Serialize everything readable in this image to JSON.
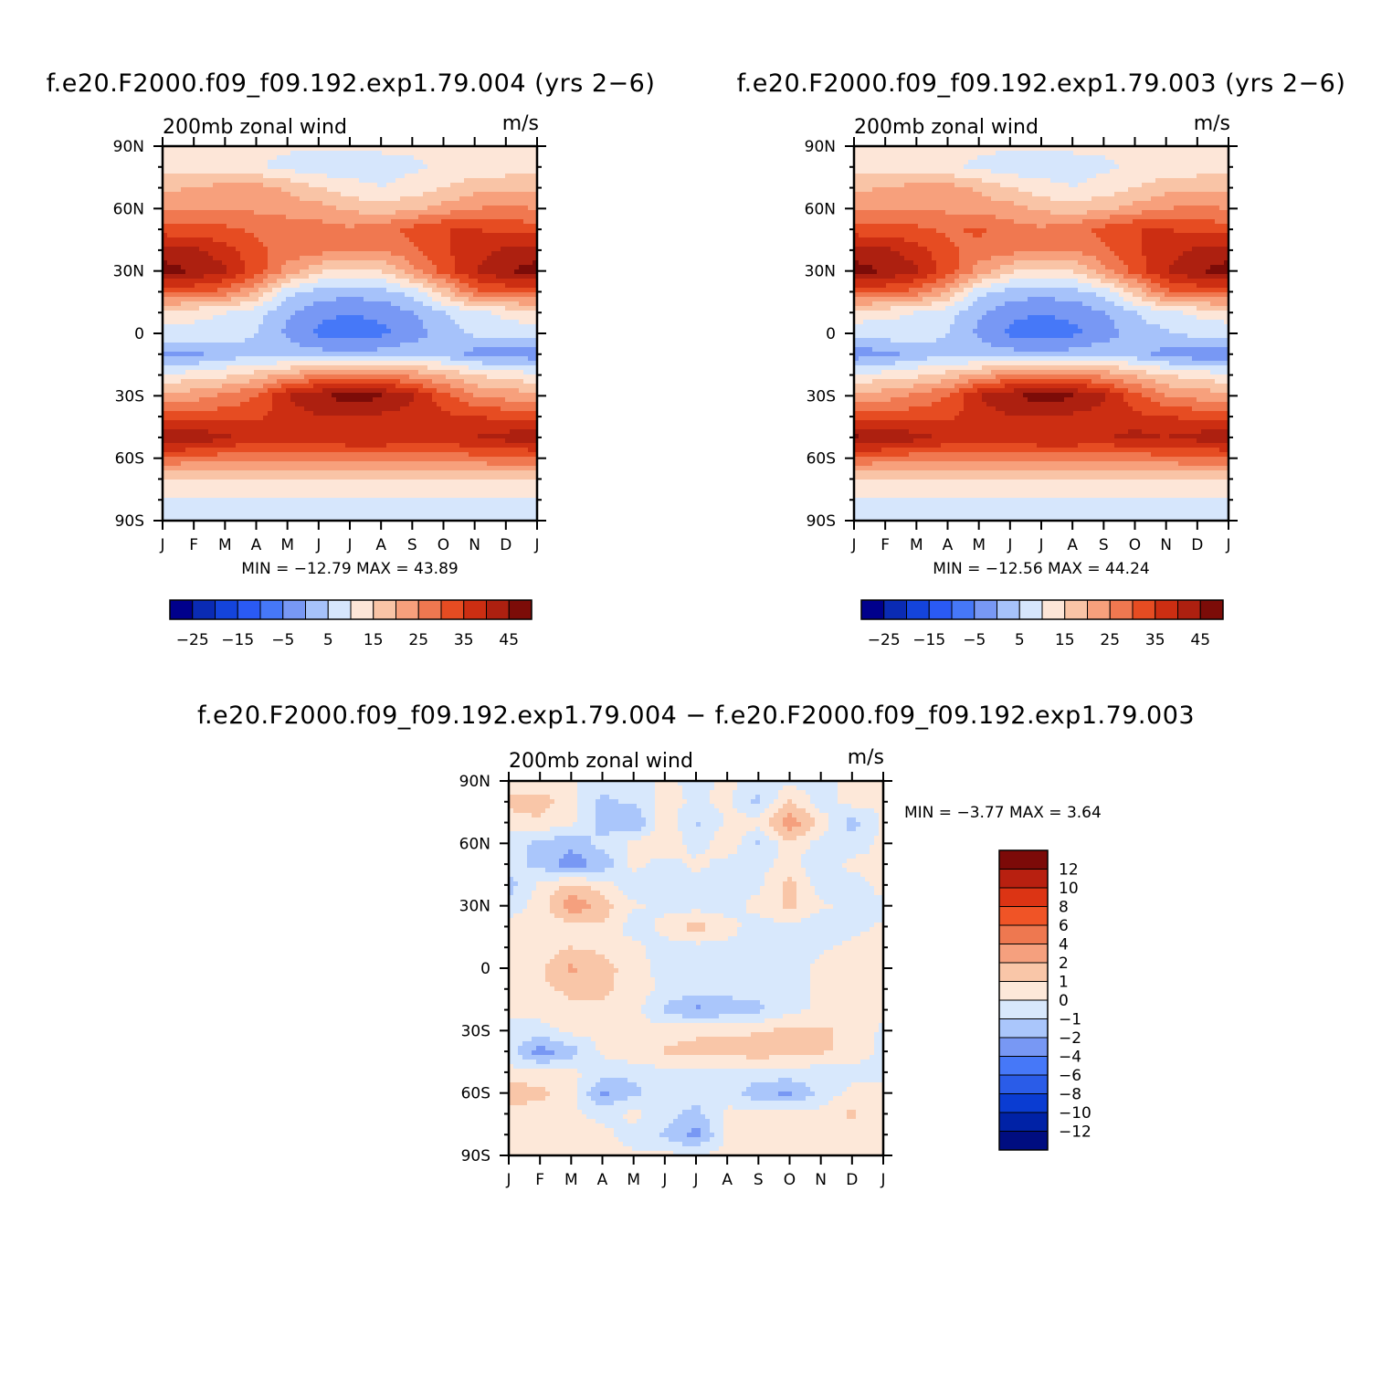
{
  "palettes": {
    "abs": [
      "#00008c",
      "#0a2bb4",
      "#1444dc",
      "#2a5af4",
      "#4678f8",
      "#7898f4",
      "#a6c2fa",
      "#d6e6fc",
      "#fde6d8",
      "#f9c4a6",
      "#f7a07c",
      "#f07850",
      "#e64c22",
      "#cc2e12",
      "#ad2010",
      "#7c0c08"
    ],
    "diff": [
      "#000d80",
      "#0022a6",
      "#0a3cd2",
      "#2a5ce8",
      "#4678f8",
      "#7898f4",
      "#aac6fb",
      "#d8e8fc",
      "#fde8d9",
      "#f9c6a8",
      "#f5a07e",
      "#ee7850",
      "#f05426",
      "#dc3414",
      "#b82010",
      "#7c0a08"
    ]
  },
  "charts": [
    {
      "title": "f.e20.F2000.f09_f09.192.exp1.79.004 (yrs 2−6)",
      "left_label": "200mb zonal wind",
      "right_label": "m/s",
      "min_max": "MIN = −12.79 MAX =   43.89",
      "colorbar_labels": [
        "−25",
        "−15",
        "−5",
        "5",
        "15",
        "25",
        "35",
        "45"
      ]
    },
    {
      "title": "f.e20.F2000.f09_f09.192.exp1.79.003 (yrs 2−6)",
      "left_label": "200mb zonal wind",
      "right_label": "m/s",
      "min_max": "MIN = −12.56 MAX =   44.24",
      "colorbar_labels": [
        "−25",
        "−15",
        "−5",
        "5",
        "15",
        "25",
        "35",
        "45"
      ]
    },
    {
      "title": "f.e20.F2000.f09_f09.192.exp1.79.004 − f.e20.F2000.f09_f09.192.exp1.79.003",
      "left_label": "200mb zonal wind",
      "right_label": "m/s",
      "min_max": "MIN =   −3.77 MAX =    3.64",
      "colorbar_labels": [
        "12",
        "10",
        "8",
        "6",
        "4",
        "2",
        "1",
        "0",
        "−1",
        "−2",
        "−4",
        "−6",
        "−8",
        "−10",
        "−12"
      ]
    }
  ],
  "chart_data": [
    {
      "type": "heatmap",
      "title": "f.e20.F2000.f09_f09.192.exp1.79.004 (yrs 2−6)",
      "variable": "200mb zonal wind",
      "units": "m/s",
      "x_ticks": [
        "J",
        "F",
        "M",
        "A",
        "M",
        "J",
        "J",
        "A",
        "S",
        "O",
        "N",
        "D",
        "J"
      ],
      "y_ticks": [
        "90N",
        "60N",
        "30N",
        "0",
        "30S",
        "60S",
        "90S"
      ],
      "xlim": [
        0,
        12
      ],
      "ylim": [
        -90,
        90
      ],
      "contour_levels": [
        -30,
        -25,
        -20,
        -15,
        -10,
        -5,
        0,
        5,
        10,
        15,
        20,
        25,
        30,
        35,
        40,
        45
      ],
      "min": -12.79,
      "max": 43.89,
      "lats": [
        90,
        80,
        70,
        60,
        50,
        40,
        30,
        20,
        10,
        0,
        -10,
        -20,
        -30,
        -40,
        -50,
        -60,
        -70,
        -80,
        -90
      ],
      "values": [
        [
          6,
          6,
          6,
          6,
          6,
          6,
          6,
          6,
          6,
          6,
          6,
          6,
          6
        ],
        [
          8,
          8,
          8,
          6,
          3,
          2,
          2,
          3,
          4,
          6,
          6,
          7,
          8
        ],
        [
          14,
          15,
          17,
          17,
          14,
          10,
          7,
          5,
          7,
          10,
          13,
          14,
          14
        ],
        [
          20,
          20,
          20,
          19,
          18,
          17,
          14,
          12,
          14,
          17,
          20,
          21,
          20
        ],
        [
          27,
          27,
          26,
          24,
          23,
          22,
          21,
          23,
          27,
          30,
          30,
          29,
          27
        ],
        [
          38,
          36,
          32,
          26,
          23,
          22,
          21,
          20,
          24,
          29,
          33,
          36,
          38
        ],
        [
          42,
          40,
          36,
          28,
          18,
          11,
          8,
          10,
          18,
          27,
          35,
          40,
          42
        ],
        [
          27,
          26,
          23,
          15,
          2,
          -2,
          -3,
          -2,
          2,
          12,
          24,
          26,
          27
        ],
        [
          7,
          6,
          5,
          2,
          -4,
          -9,
          -10,
          -9,
          -5,
          0,
          4,
          6,
          7
        ],
        [
          4,
          4,
          3,
          0,
          -6,
          -11,
          -12,
          -11,
          -8,
          -3,
          1,
          3,
          4
        ],
        [
          -7,
          -6,
          -3,
          -2,
          -2,
          -3,
          -4,
          -3,
          0,
          -2,
          -7,
          -8,
          -8
        ],
        [
          6,
          7,
          9,
          12,
          16,
          20,
          22,
          22,
          18,
          14,
          10,
          8,
          6
        ],
        [
          17,
          18,
          21,
          25,
          35,
          40,
          42,
          41,
          36,
          27,
          20,
          18,
          17
        ],
        [
          28,
          27,
          28,
          29,
          32,
          35,
          35,
          34,
          33,
          31,
          30,
          29,
          28
        ],
        [
          40,
          40,
          36,
          33,
          33,
          34,
          35,
          35,
          34,
          34,
          35,
          37,
          40
        ],
        [
          24,
          23,
          22,
          22,
          22,
          22,
          22,
          22,
          22,
          22,
          23,
          24,
          24
        ],
        [
          10,
          10,
          10,
          10,
          10,
          10,
          10,
          10,
          10,
          10,
          10,
          10,
          10
        ],
        [
          4,
          4,
          4,
          4,
          4,
          4,
          4,
          4,
          4,
          4,
          4,
          4,
          4
        ],
        [
          3,
          3,
          3,
          3,
          2,
          3,
          3,
          3,
          3,
          3,
          3,
          3,
          3
        ]
      ]
    },
    {
      "type": "heatmap",
      "title": "f.e20.F2000.f09_f09.192.exp1.79.003 (yrs 2−6)",
      "variable": "200mb zonal wind",
      "units": "m/s",
      "x_ticks": [
        "J",
        "F",
        "M",
        "A",
        "M",
        "J",
        "J",
        "A",
        "S",
        "O",
        "N",
        "D",
        "J"
      ],
      "y_ticks": [
        "90N",
        "60N",
        "30N",
        "0",
        "30S",
        "60S",
        "90S"
      ],
      "xlim": [
        0,
        12
      ],
      "ylim": [
        -90,
        90
      ],
      "contour_levels": [
        -30,
        -25,
        -20,
        -15,
        -10,
        -5,
        0,
        5,
        10,
        15,
        20,
        25,
        30,
        35,
        40,
        45
      ],
      "min": -12.56,
      "max": 44.24,
      "lats": [
        90,
        80,
        70,
        60,
        50,
        40,
        30,
        20,
        10,
        0,
        -10,
        -20,
        -30,
        -40,
        -50,
        -60,
        -70,
        -80,
        -90
      ],
      "values": [
        [
          6,
          6,
          6,
          6,
          6,
          6,
          6,
          6,
          6,
          6,
          6,
          6,
          6
        ],
        [
          8,
          8,
          8,
          6,
          4,
          2,
          2,
          3,
          4,
          6,
          6,
          7,
          8
        ],
        [
          14,
          15,
          17,
          17,
          14,
          10,
          7,
          5,
          7,
          10,
          13,
          14,
          14
        ],
        [
          20,
          20,
          20,
          19,
          18,
          17,
          14,
          12,
          14,
          17,
          20,
          21,
          20
        ],
        [
          27,
          27,
          26,
          24,
          26,
          22,
          21,
          23,
          27,
          30,
          30,
          29,
          27
        ],
        [
          38,
          36,
          32,
          26,
          23,
          22,
          21,
          20,
          24,
          29,
          33,
          36,
          38
        ],
        [
          42,
          40,
          36,
          28,
          18,
          11,
          8,
          10,
          18,
          27,
          35,
          40,
          42
        ],
        [
          27,
          26,
          23,
          15,
          2,
          -2,
          -3,
          -2,
          2,
          12,
          24,
          26,
          27
        ],
        [
          7,
          6,
          5,
          2,
          -4,
          -9,
          -10,
          -9,
          -5,
          0,
          4,
          6,
          7
        ],
        [
          3,
          3,
          3,
          0,
          -6,
          -11,
          -12,
          -11,
          -8,
          -3,
          -1,
          2,
          3
        ],
        [
          -8,
          -7,
          -3,
          -2,
          -2,
          -3,
          -4,
          -3,
          0,
          -3,
          -7,
          -9,
          -9
        ],
        [
          6,
          7,
          9,
          12,
          16,
          20,
          22,
          22,
          18,
          14,
          10,
          8,
          6
        ],
        [
          17,
          18,
          21,
          25,
          35,
          40,
          42,
          41,
          36,
          27,
          20,
          18,
          17
        ],
        [
          28,
          27,
          28,
          29,
          32,
          35,
          35,
          34,
          33,
          31,
          30,
          29,
          28
        ],
        [
          41,
          40,
          37,
          34,
          33,
          34,
          35,
          35,
          34,
          37,
          35,
          37,
          40
        ],
        [
          24,
          23,
          22,
          22,
          22,
          22,
          22,
          22,
          22,
          22,
          23,
          24,
          24
        ],
        [
          10,
          10,
          10,
          10,
          10,
          10,
          10,
          10,
          10,
          10,
          10,
          10,
          10
        ],
        [
          4,
          4,
          4,
          4,
          4,
          4,
          4,
          4,
          4,
          4,
          4,
          4,
          4
        ],
        [
          3,
          3,
          3,
          2,
          3,
          3,
          3,
          3,
          3,
          3,
          3,
          3,
          3
        ]
      ]
    },
    {
      "type": "heatmap",
      "title": "f.e20.F2000.f09_f09.192.exp1.79.004 − f.e20.F2000.f09_f09.192.exp1.79.003",
      "variable": "200mb zonal wind",
      "units": "m/s",
      "x_ticks": [
        "J",
        "F",
        "M",
        "A",
        "M",
        "J",
        "J",
        "A",
        "S",
        "O",
        "N",
        "D",
        "J"
      ],
      "y_ticks": [
        "90N",
        "60N",
        "30N",
        "0",
        "30S",
        "60S",
        "90S"
      ],
      "xlim": [
        0,
        12
      ],
      "ylim": [
        -90,
        90
      ],
      "contour_levels": [
        -12,
        -10,
        -8,
        -6,
        -4,
        -2,
        -1,
        0,
        1,
        2,
        4,
        6,
        8,
        10,
        12
      ],
      "min": -3.77,
      "max": 3.64,
      "lats": [
        90,
        80,
        70,
        60,
        50,
        40,
        30,
        20,
        10,
        0,
        -10,
        -20,
        -30,
        -40,
        -50,
        -60,
        -70,
        -80,
        -90
      ],
      "values": [
        [
          0.3,
          0.3,
          0.1,
          -0.3,
          -0.3,
          0.2,
          -0.3,
          0.2,
          -0.4,
          -0.4,
          -0.3,
          0.2,
          0.2
        ],
        [
          1.2,
          1.5,
          0.4,
          -1.3,
          -0.8,
          0.4,
          -0.2,
          0.3,
          -1.3,
          1.2,
          -0.6,
          0.4,
          0.2
        ],
        [
          0.6,
          0.8,
          0.2,
          -1.5,
          -2.1,
          0.8,
          -1.2,
          0.1,
          0.5,
          2.8,
          0.6,
          -1.4,
          0.2
        ],
        [
          -0.6,
          -1.2,
          -1.8,
          -0.6,
          0.2,
          0.9,
          -0.5,
          0.8,
          -1.2,
          0.8,
          -0.4,
          -0.6,
          0.3
        ],
        [
          -0.4,
          -1.4,
          -2.6,
          -1.8,
          0.3,
          -0.5,
          0.3,
          -0.4,
          -0.3,
          0.3,
          -0.8,
          0.3,
          0.1
        ],
        [
          -1.5,
          0.3,
          1.2,
          0.5,
          -0.7,
          -0.4,
          -0.5,
          -0.4,
          -0.2,
          1.4,
          -0.6,
          -0.4,
          0.3
        ],
        [
          -0.5,
          0.4,
          2.8,
          1.6,
          0.2,
          -0.3,
          -0.5,
          -0.4,
          0.3,
          1.2,
          0.2,
          -0.3,
          -0.2
        ],
        [
          0.4,
          0.3,
          0.6,
          0.8,
          -0.6,
          0.3,
          1.6,
          0.3,
          -0.4,
          -0.2,
          -0.7,
          -0.2,
          0.1
        ],
        [
          0.2,
          0.5,
          1.0,
          0.7,
          0.3,
          -0.4,
          -0.4,
          -0.2,
          -0.2,
          -0.3,
          -0.1,
          0.2,
          0.2
        ],
        [
          0.5,
          0.8,
          2.2,
          1.5,
          0.4,
          -0.4,
          -0.3,
          -0.3,
          -0.3,
          -0.3,
          0.2,
          0.3,
          0.3
        ],
        [
          0.4,
          0.8,
          1.2,
          1.3,
          0.5,
          -0.2,
          -0.5,
          -0.6,
          -0.5,
          -0.3,
          0.2,
          0.3,
          0.3
        ],
        [
          0.3,
          0.4,
          0.8,
          0.7,
          0.4,
          -1.2,
          -2.3,
          -1.6,
          -1.3,
          -0.3,
          0.2,
          0.2,
          0.3
        ],
        [
          -0.3,
          -0.4,
          0.3,
          0.4,
          0.3,
          0.6,
          0.8,
          0.8,
          0.9,
          1.3,
          1.2,
          0.8,
          -0.2
        ],
        [
          -0.5,
          -2.6,
          -1.5,
          0.2,
          0.8,
          1.1,
          1.3,
          1.4,
          1.6,
          1.4,
          1.2,
          0.6,
          -0.3
        ],
        [
          0.3,
          0.2,
          0.3,
          -0.6,
          -0.7,
          -0.3,
          -0.2,
          -0.3,
          -0.4,
          -0.3,
          -0.6,
          -0.4,
          -0.3
        ],
        [
          1.8,
          1.3,
          0.4,
          -2.2,
          -1.3,
          -0.4,
          -0.4,
          -0.5,
          -1.7,
          -2.3,
          -0.6,
          0.3,
          0.3
        ],
        [
          0.6,
          0.4,
          0.3,
          -0.4,
          0.3,
          -0.6,
          -1.4,
          0.3,
          0.3,
          0.6,
          0.3,
          1.2,
          0.4
        ],
        [
          0.2,
          0.3,
          0.5,
          0.3,
          -0.4,
          -1.2,
          -2.4,
          0.3,
          0.5,
          0.4,
          0.3,
          0.3,
          0.2
        ],
        [
          0.2,
          0.2,
          0.2,
          0.3,
          0.2,
          0.2,
          0.1,
          0.2,
          0.2,
          0.2,
          0.2,
          0.2,
          0.2
        ]
      ]
    }
  ]
}
